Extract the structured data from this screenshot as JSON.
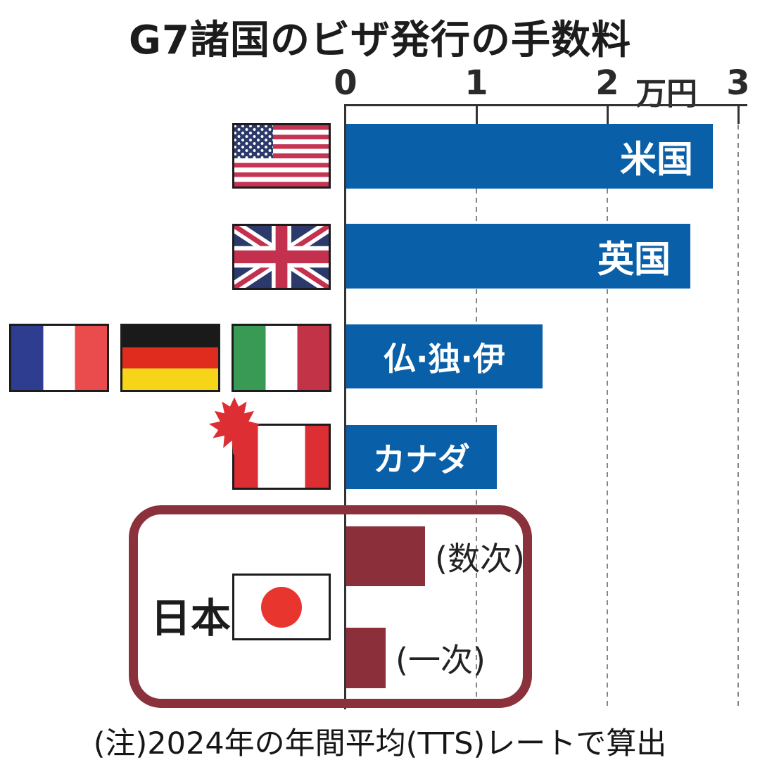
{
  "title": "G7諸国のビザ発行の手数料",
  "unit_label": "万円",
  "japan_label": "日本",
  "note": "(注)2024年の年間平均(TTS)レートで算出",
  "colors": {
    "bar_blue": "#0a5fa9",
    "bar_maroon": "#8b2f3a",
    "japan_box_border": "#8b313c",
    "axis": "#333333",
    "gridline": "#858585",
    "bar_label_white": "#ffffff",
    "japan_flag_red": "#e8352e"
  },
  "flags": [
    {
      "icon": "us-flag-icon",
      "country": "United States"
    },
    {
      "icon": "uk-flag-icon",
      "country": "United Kingdom"
    },
    {
      "icon": "france-flag-icon",
      "country": "France"
    },
    {
      "icon": "germany-flag-icon",
      "country": "Germany"
    },
    {
      "icon": "italy-flag-icon",
      "country": "Italy"
    },
    {
      "icon": "canada-flag-icon",
      "country": "Canada"
    },
    {
      "icon": "japan-flag-icon",
      "country": "Japan"
    }
  ],
  "chart_data": {
    "type": "bar",
    "orientation": "horizontal",
    "title": "G7諸国のビザ発行の手数料",
    "value_unit": "万円",
    "xlim": [
      0,
      3
    ],
    "x_tick_labels": [
      "0",
      "1",
      "2",
      "3"
    ],
    "grid": "dashed vertical lines at 1, 2, 3",
    "note": "(注)2024年の年間平均(TTS)レートで算出",
    "bars": [
      {
        "id": "us",
        "label": "米国",
        "value": 2.8,
        "color": "#0a5fa9"
      },
      {
        "id": "uk",
        "label": "英国",
        "value": 2.63,
        "color": "#0a5fa9"
      },
      {
        "id": "fr-de-it",
        "label": "仏·独·伊",
        "value": 1.5,
        "color": "#0a5fa9"
      },
      {
        "id": "canada",
        "label": "カナダ",
        "value": 1.15,
        "color": "#0a5fa9"
      },
      {
        "id": "japan-multiple",
        "label": "(数次)",
        "value": 0.6,
        "color": "#8b2f3a"
      },
      {
        "id": "japan-single",
        "label": "(一次)",
        "value": 0.3,
        "color": "#8b2f3a"
      }
    ]
  }
}
